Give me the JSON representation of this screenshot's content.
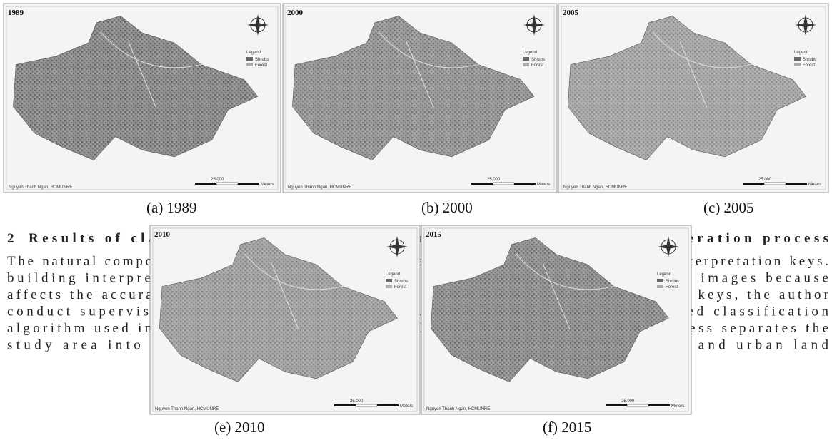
{
  "heading": {
    "number": "2",
    "text": "Results of classifying images and analyzing and assessment of the alteration process"
  },
  "body_lines": [
    "The natural composite images of the Landsat images are the basis for building the interpretation keys.",
    "building interpretation keys is an important process in classifying the satellite images because",
    "affects the accuracy of the classification results. After creating the interpretation keys, the author",
    "conduct supervised classification of the images. In this research, the supervised classification",
    "algorithm used in this research is Maximum Likelihood Classification. This process separates the",
    "study area into six classes: (1) forest, (2) sparse vegetation, (3) bare soil and urban land"
  ],
  "figures": [
    {
      "year": "1989",
      "caption": "(a) 1989"
    },
    {
      "year": "2000",
      "caption": "(b) 2000"
    },
    {
      "year": "2005",
      "caption": "(c) 2005"
    },
    {
      "year": "2010",
      "caption": "(e) 2010"
    },
    {
      "year": "2015",
      "caption": "(f) 2015"
    }
  ],
  "map_legend": {
    "title": "Legend",
    "items": [
      "Shrubs",
      "Forest"
    ]
  },
  "map_credit": "Nguyen Thanh Ngan, HCMUNRE",
  "map_scale": [
    "25.000",
    "Meters"
  ]
}
